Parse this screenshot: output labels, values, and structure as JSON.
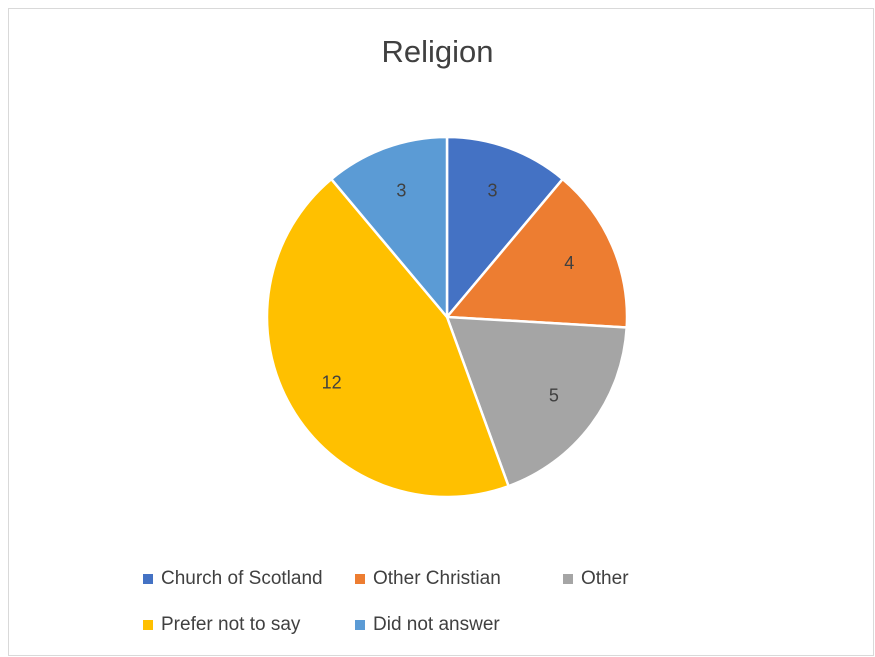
{
  "chart_data": {
    "type": "pie",
    "title": "Religion",
    "categories": [
      "Church of Scotland",
      "Other Christian",
      "Other",
      "Prefer not to say",
      "Did not answer"
    ],
    "values": [
      3,
      4,
      5,
      12,
      3
    ],
    "colors": [
      "#4472c4",
      "#ed7d31",
      "#a5a5a5",
      "#ffc000",
      "#5b9bd5"
    ],
    "data_labels": [
      "3",
      "4",
      "5",
      "12",
      "3"
    ],
    "legend_position": "bottom"
  }
}
